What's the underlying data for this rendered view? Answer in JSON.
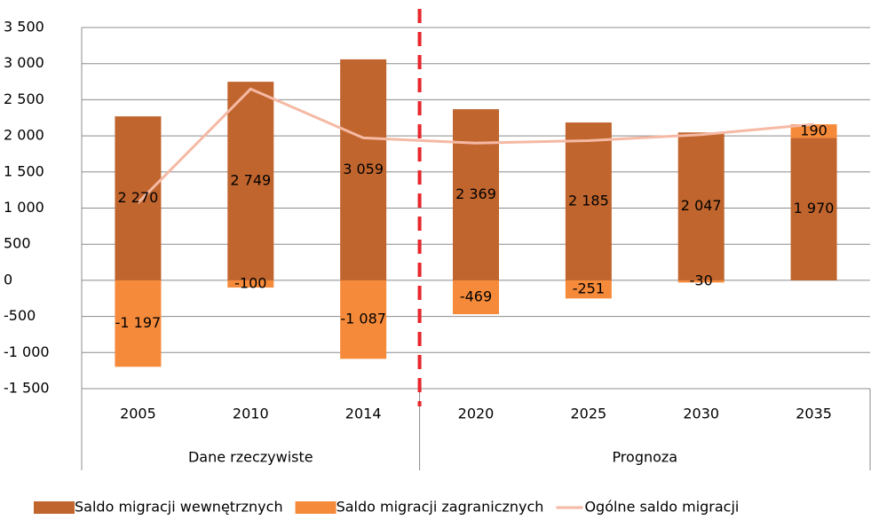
{
  "chart_data": {
    "type": "bar",
    "categories": [
      "2005",
      "2010",
      "2014",
      "2020",
      "2025",
      "2030",
      "2035"
    ],
    "series": [
      {
        "name": "Saldo migracji wewnętrznych",
        "color": "#c0652e",
        "values": [
          2270,
          2749,
          3059,
          2369,
          2185,
          2047,
          1970
        ],
        "value_labels": [
          "2 270",
          "2 749",
          "3 059",
          "2 369",
          "2 185",
          "2 047",
          "1 970"
        ]
      },
      {
        "name": "Saldo migracji zagranicznych",
        "color": "#f58a3a",
        "values": [
          -1197,
          -100,
          -1087,
          -469,
          -251,
          -30,
          190
        ],
        "value_labels": [
          "-1 197",
          "-100",
          "-1 087",
          "-469",
          "-251",
          "-30",
          "190"
        ]
      },
      {
        "name": "Ogólne saldo migracji",
        "type": "line",
        "color": "#f5b9a4",
        "values": [
          1073,
          2649,
          1972,
          1900,
          1934,
          2017,
          2160
        ]
      }
    ],
    "groups": [
      {
        "name": "Dane rzeczywiste",
        "categories": [
          "2005",
          "2010",
          "2014"
        ]
      },
      {
        "name": "Prognoza",
        "categories": [
          "2020",
          "2025",
          "2030",
          "2035"
        ]
      }
    ],
    "divider_color": "#e8262b",
    "ylim": [
      -1500,
      3500
    ],
    "yticks": [
      {
        "value": -1500,
        "label": "-1 500"
      },
      {
        "value": -1000,
        "label": "-1 000"
      },
      -500,
      0,
      500,
      {
        "value": 1000,
        "label": "1 000"
      },
      {
        "value": 1500,
        "label": "1 500"
      },
      {
        "value": 2000,
        "label": "2 000"
      },
      {
        "value": 2500,
        "label": "2 500"
      },
      {
        "value": 3000,
        "label": "3 000"
      },
      {
        "value": 3500,
        "label": "3 500"
      }
    ],
    "grid": true,
    "legend": "bottom"
  }
}
